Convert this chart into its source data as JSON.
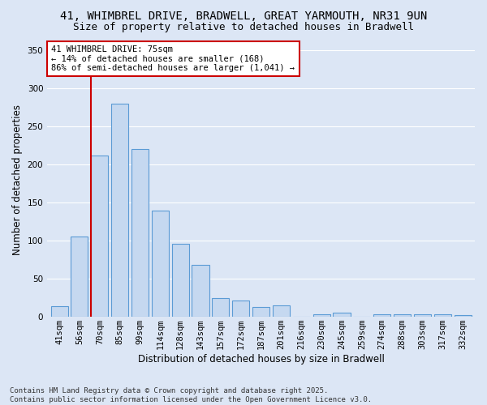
{
  "title": "41, WHIMBREL DRIVE, BRADWELL, GREAT YARMOUTH, NR31 9UN",
  "subtitle": "Size of property relative to detached houses in Bradwell",
  "xlabel": "Distribution of detached houses by size in Bradwell",
  "ylabel": "Number of detached properties",
  "categories": [
    "41sqm",
    "56sqm",
    "70sqm",
    "85sqm",
    "99sqm",
    "114sqm",
    "128sqm",
    "143sqm",
    "157sqm",
    "172sqm",
    "187sqm",
    "201sqm",
    "216sqm",
    "230sqm",
    "245sqm",
    "259sqm",
    "274sqm",
    "288sqm",
    "303sqm",
    "317sqm",
    "332sqm"
  ],
  "values": [
    14,
    105,
    212,
    280,
    220,
    139,
    96,
    68,
    25,
    21,
    13,
    15,
    0,
    3,
    5,
    0,
    3,
    3,
    3,
    3,
    2
  ],
  "bar_color": "#c5d8f0",
  "bar_edge_color": "#5b9bd5",
  "vline_color": "#cc0000",
  "vline_index": 2,
  "annotation_text_line1": "41 WHIMBREL DRIVE: 75sqm",
  "annotation_text_line2": "← 14% of detached houses are smaller (168)",
  "annotation_text_line3": "86% of semi-detached houses are larger (1,041) →",
  "annotation_box_color": "#ffffff",
  "annotation_box_edge_color": "#cc0000",
  "ylim": [
    0,
    360
  ],
  "yticks": [
    0,
    50,
    100,
    150,
    200,
    250,
    300,
    350
  ],
  "background_color": "#dce6f5",
  "plot_background": "#dce6f5",
  "grid_color": "#ffffff",
  "footer_text": "Contains HM Land Registry data © Crown copyright and database right 2025.\nContains public sector information licensed under the Open Government Licence v3.0.",
  "title_fontsize": 10,
  "subtitle_fontsize": 9,
  "label_fontsize": 8.5,
  "tick_fontsize": 7.5,
  "annotation_fontsize": 7.5,
  "footer_fontsize": 6.5
}
